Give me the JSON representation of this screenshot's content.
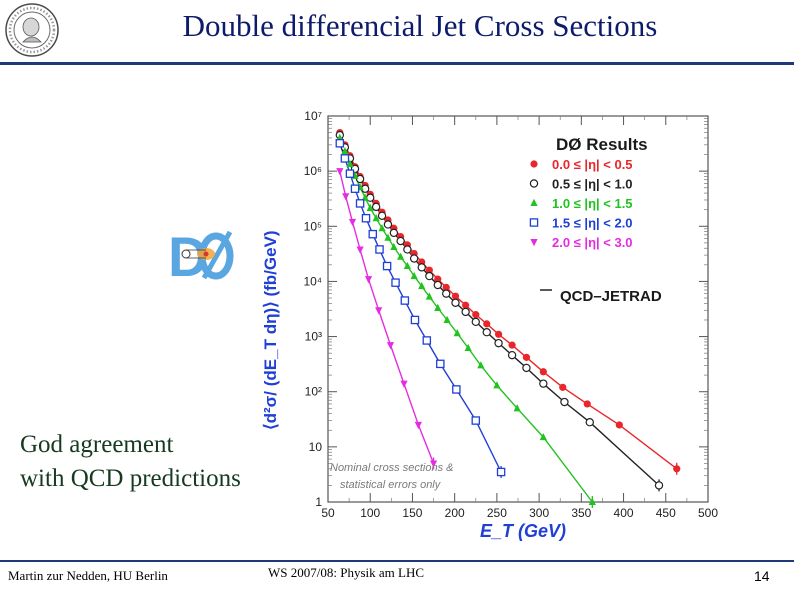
{
  "slide": {
    "title": "Double differencial Jet Cross Sections",
    "conclusion_line1": "God agreement",
    "conclusion_line2": "with QCD predictions",
    "footer_left": "Martin zur Nedden, HU Berlin",
    "footer_center": "WS 2007/08: Physik am LHC",
    "page_number": "14",
    "accent_color": "#1f3a7a",
    "title_color": "#0d1b6b"
  },
  "chart_data": {
    "type": "scatter",
    "log_y": true,
    "xlim": [
      50,
      500
    ],
    "ylim": [
      1,
      10000000
    ],
    "x_ticks": [
      50,
      100,
      150,
      200,
      250,
      300,
      350,
      400,
      450,
      500
    ],
    "y_ticks": [
      {
        "v": 1,
        "label": "1"
      },
      {
        "v": 10,
        "label": "10"
      },
      {
        "v": 100,
        "label": "10²"
      },
      {
        "v": 1000,
        "label": "10³"
      },
      {
        "v": 10000,
        "label": "10⁴"
      },
      {
        "v": 100000,
        "label": "10⁵"
      },
      {
        "v": 1000000,
        "label": "10⁶"
      },
      {
        "v": 10000000,
        "label": "10⁷"
      }
    ],
    "xlabel": "E_T (GeV)",
    "ylabel": "⟨d²σ/ (dE_T dη)⟩ (fb/GeV)",
    "legend_title": "DØ Results",
    "legend_position": "top-right",
    "theory_label": "QCD–JETRAD",
    "annotation_line1": "Nominal cross sections &",
    "annotation_line2": "statistical errors only",
    "series": [
      {
        "name": "0.0 ≤ |η| < 0.5",
        "color": "#e8262b",
        "marker": "filled-circle",
        "x": [
          64,
          70,
          76,
          82,
          88,
          94,
          100,
          107,
          114,
          121,
          128,
          136,
          144,
          152,
          161,
          170,
          180,
          190,
          201,
          213,
          225,
          238,
          252,
          268,
          285,
          305,
          328,
          357,
          395,
          463
        ],
        "y": [
          5000000,
          3000000,
          1900000,
          1200000,
          800000,
          550000,
          380000,
          260000,
          180000,
          130000,
          92000,
          65000,
          46000,
          32000,
          22500,
          16000,
          11000,
          7800,
          5400,
          3700,
          2500,
          1700,
          1100,
          700,
          420,
          230,
          120,
          60,
          25,
          4
        ]
      },
      {
        "name": "0.5 ≤ |η| < 1.0",
        "color": "#222222",
        "marker": "open-circle",
        "x": [
          64,
          70,
          76,
          82,
          88,
          94,
          100,
          107,
          114,
          121,
          128,
          136,
          144,
          152,
          161,
          170,
          180,
          190,
          201,
          213,
          225,
          238,
          252,
          268,
          285,
          305,
          330,
          360,
          442
        ],
        "y": [
          4500000,
          2700000,
          1700000,
          1100000,
          720000,
          480000,
          330000,
          225000,
          155000,
          108000,
          76000,
          54000,
          38000,
          26000,
          18000,
          12500,
          8600,
          6000,
          4100,
          2800,
          1850,
          1200,
          760,
          460,
          270,
          140,
          65,
          28,
          2
        ]
      },
      {
        "name": "1.0 ≤ |η| < 1.5",
        "color": "#22c21f",
        "marker": "filled-triangle-up",
        "x": [
          64,
          70,
          76,
          82,
          88,
          94,
          100,
          107,
          114,
          121,
          128,
          136,
          144,
          152,
          161,
          170,
          180,
          191,
          203,
          216,
          231,
          250,
          274,
          305,
          363
        ],
        "y": [
          4000000,
          2300000,
          1350000,
          820000,
          510000,
          330000,
          215000,
          140000,
          92000,
          62000,
          42000,
          28000,
          19000,
          12500,
          8200,
          5300,
          3300,
          2000,
          1150,
          620,
          300,
          130,
          50,
          15,
          1
        ]
      },
      {
        "name": "1.5 ≤ |η| < 2.0",
        "color": "#1f3fd6",
        "marker": "open-square",
        "x": [
          64,
          70,
          76,
          82,
          88,
          95,
          103,
          111,
          120,
          130,
          141,
          153,
          167,
          183,
          202,
          225,
          255
        ],
        "y": [
          3200000,
          1700000,
          900000,
          480000,
          260000,
          140000,
          72000,
          38000,
          19000,
          9500,
          4500,
          2000,
          850,
          320,
          110,
          30,
          3.5
        ]
      },
      {
        "name": "2.0 ≤ |η| < 3.0",
        "color": "#e62ce0",
        "marker": "filled-triangle-down",
        "x": [
          64,
          71,
          79,
          88,
          98,
          110,
          124,
          140,
          157,
          175
        ],
        "y": [
          1000000,
          350000,
          120000,
          38000,
          11000,
          3000,
          700,
          140,
          25,
          5
        ]
      }
    ]
  }
}
